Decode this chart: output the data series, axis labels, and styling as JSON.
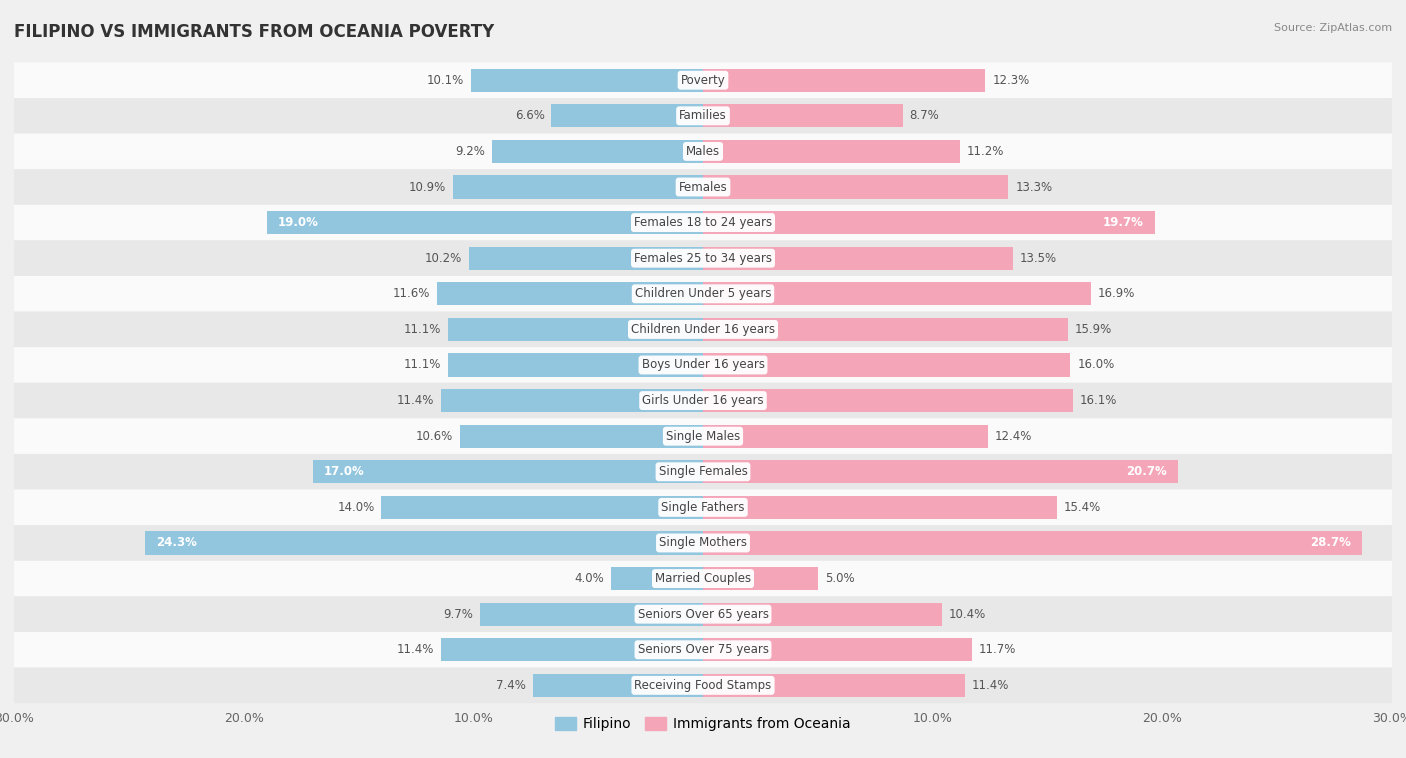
{
  "title": "FILIPINO VS IMMIGRANTS FROM OCEANIA POVERTY",
  "source": "Source: ZipAtlas.com",
  "categories": [
    "Poverty",
    "Families",
    "Males",
    "Females",
    "Females 18 to 24 years",
    "Females 25 to 34 years",
    "Children Under 5 years",
    "Children Under 16 years",
    "Boys Under 16 years",
    "Girls Under 16 years",
    "Single Males",
    "Single Females",
    "Single Fathers",
    "Single Mothers",
    "Married Couples",
    "Seniors Over 65 years",
    "Seniors Over 75 years",
    "Receiving Food Stamps"
  ],
  "filipino": [
    10.1,
    6.6,
    9.2,
    10.9,
    19.0,
    10.2,
    11.6,
    11.1,
    11.1,
    11.4,
    10.6,
    17.0,
    14.0,
    24.3,
    4.0,
    9.7,
    11.4,
    7.4
  ],
  "oceania": [
    12.3,
    8.7,
    11.2,
    13.3,
    19.7,
    13.5,
    16.9,
    15.9,
    16.0,
    16.1,
    12.4,
    20.7,
    15.4,
    28.7,
    5.0,
    10.4,
    11.7,
    11.4
  ],
  "filipino_color": "#92c5de",
  "oceania_color": "#f4a5b8",
  "background_color": "#f0f0f0",
  "row_color_light": "#fafafa",
  "row_color_dark": "#e8e8e8",
  "max_val": 30.0,
  "label_fontsize": 8.5,
  "title_fontsize": 12,
  "legend_label_filipino": "Filipino",
  "legend_label_oceania": "Immigrants from Oceania",
  "inside_label_threshold_fil": 15.0,
  "inside_label_threshold_oce": 17.0
}
